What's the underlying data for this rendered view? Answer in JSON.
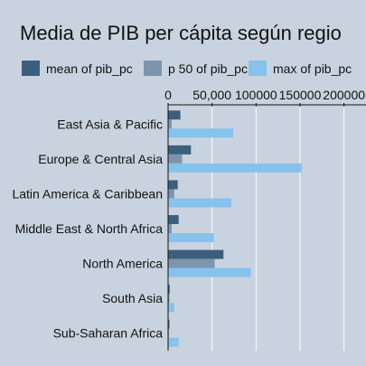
{
  "chart_data": {
    "type": "bar",
    "orientation": "horizontal",
    "title": "Media de PIB per cápita según regio",
    "categories": [
      "East Asia & Pacific",
      "Europe & Central Asia",
      "Latin America & Caribbean",
      "Middle East & North Africa",
      "North America",
      "South Asia",
      "Sub-Saharan Africa"
    ],
    "series": [
      {
        "name": "mean of pib_pc",
        "color": "#3c5f7d",
        "values": [
          14000,
          26000,
          11000,
          12000,
          63000,
          1800,
          1500
        ]
      },
      {
        "name": "p 50 of pib_pc",
        "color": "#7c94ad",
        "values": [
          4000,
          16000,
          7000,
          4000,
          53000,
          1500,
          800
        ]
      },
      {
        "name": "max of pib_pc",
        "color": "#86c2ec",
        "values": [
          74000,
          152000,
          72000,
          52000,
          94000,
          7000,
          12000
        ]
      }
    ],
    "xticks": [
      {
        "value": 0,
        "label": "0"
      },
      {
        "value": 50000,
        "label": "50,000"
      },
      {
        "value": 100000,
        "label": "100000"
      },
      {
        "value": 150000,
        "label": "150000"
      },
      {
        "value": 200000,
        "label": "200000"
      }
    ],
    "xlim": [
      0,
      225000
    ],
    "grid": true,
    "legend_position": "top",
    "xlabel": "",
    "ylabel": ""
  }
}
